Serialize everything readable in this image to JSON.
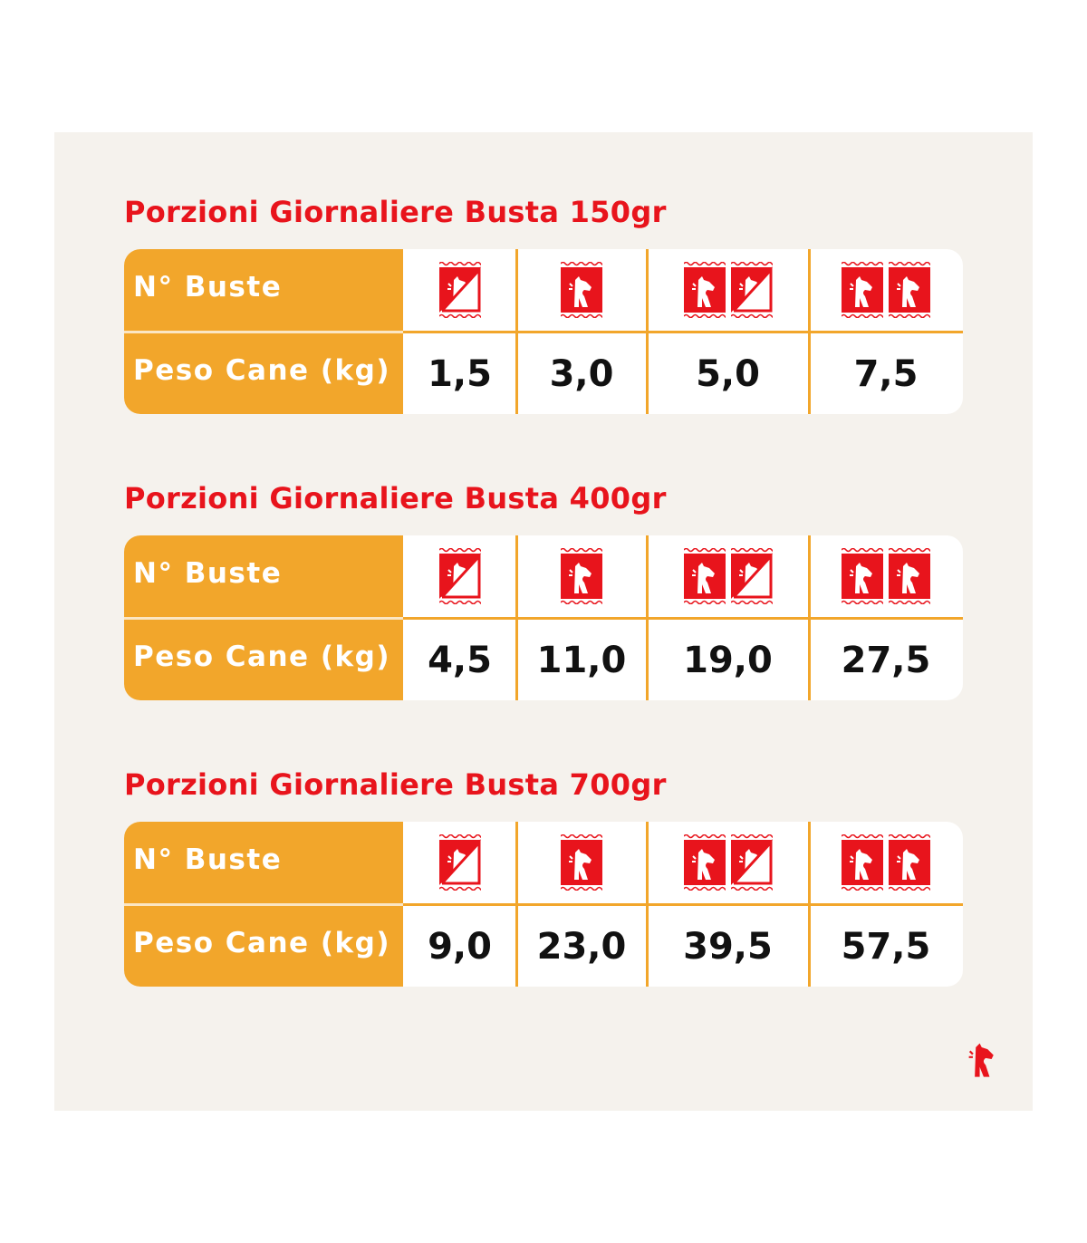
{
  "colors": {
    "accent": "#e8141c",
    "header": "#f2a62b",
    "panel": "#f5f2ed"
  },
  "tables": [
    {
      "title": "Porzioni Giornaliere Busta 150gr",
      "row1_label": "N° Buste",
      "row2_label": "Peso Cane (kg)",
      "columns": [
        {
          "bags": 0.5,
          "weight": "1,5"
        },
        {
          "bags": 1,
          "weight": "3,0"
        },
        {
          "bags": 1.5,
          "weight": "5,0"
        },
        {
          "bags": 2,
          "weight": "7,5"
        }
      ]
    },
    {
      "title": "Porzioni Giornaliere Busta 400gr",
      "row1_label": "N° Buste",
      "row2_label": "Peso Cane (kg)",
      "columns": [
        {
          "bags": 0.5,
          "weight": "4,5"
        },
        {
          "bags": 1,
          "weight": "11,0"
        },
        {
          "bags": 1.5,
          "weight": "19,0"
        },
        {
          "bags": 2,
          "weight": "27,5"
        }
      ]
    },
    {
      "title": "Porzioni Giornaliere Busta 700gr",
      "row1_label": "N° Buste",
      "row2_label": "Peso Cane (kg)",
      "columns": [
        {
          "bags": 0.5,
          "weight": "9,0"
        },
        {
          "bags": 1,
          "weight": "23,0"
        },
        {
          "bags": 1.5,
          "weight": "39,5"
        },
        {
          "bags": 2,
          "weight": "57,5"
        }
      ]
    }
  ],
  "logo": {
    "icon": "dog-logo-icon"
  }
}
